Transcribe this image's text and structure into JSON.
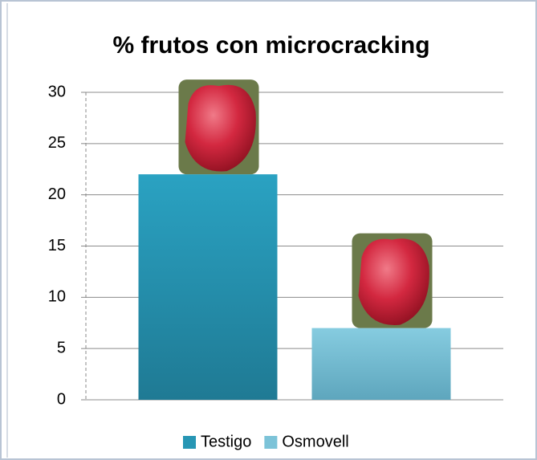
{
  "chart_data": {
    "type": "bar",
    "title": "% frutos con microcracking",
    "categories": [
      null
    ],
    "series": [
      {
        "name": "Testigo",
        "color": "#2796b4",
        "values": [
          22
        ]
      },
      {
        "name": "Osmovell",
        "color": "#7cc3d8",
        "values": [
          7
        ]
      }
    ],
    "ylim": [
      0,
      30
    ],
    "yticks": [
      0,
      5,
      10,
      15,
      20,
      25,
      30
    ],
    "grid": true,
    "legend": "bottom"
  }
}
